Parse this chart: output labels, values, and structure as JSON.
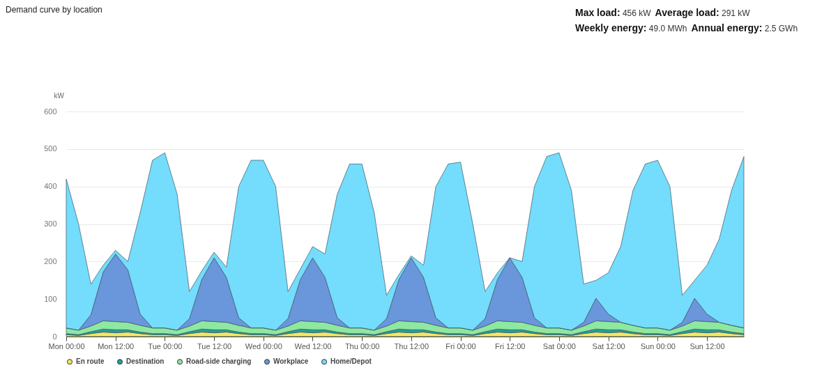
{
  "chart_data": {
    "type": "area",
    "stacked": true,
    "title": "Demand curve by location",
    "ylabel": "kW",
    "annotations": [
      "Max load: 456 kW",
      "Average load: 291 kW",
      "Weekly energy: 49.0 MWh",
      "Annual energy: 2.5 GWh"
    ],
    "categories": [
      "Mon 00:00",
      null,
      null,
      null,
      "Mon 12:00",
      null,
      null,
      null,
      "Tue 00:00",
      null,
      null,
      null,
      "Tue 12:00",
      null,
      null,
      null,
      "Wed 00:00",
      null,
      null,
      null,
      "Wed 12:00",
      null,
      null,
      null,
      "Thu 00:00",
      null,
      null,
      null,
      "Thu 12:00",
      null,
      null,
      null,
      "Fri 00:00",
      null,
      null,
      null,
      "Fri 12:00",
      null,
      null,
      null,
      "Sat 00:00",
      null,
      null,
      null,
      "Sat 12:00",
      null,
      null,
      null,
      "Sun 00:00",
      null,
      null,
      null,
      "Sun 12:00",
      null,
      null,
      null
    ],
    "series": [
      {
        "name": "En route",
        "color": "#f5e663",
        "values": [
          5,
          3,
          8,
          12,
          10,
          12,
          8,
          5,
          5,
          3,
          8,
          12,
          10,
          12,
          8,
          5,
          5,
          3,
          8,
          12,
          10,
          12,
          8,
          5,
          5,
          3,
          8,
          12,
          10,
          12,
          8,
          5,
          5,
          3,
          8,
          12,
          10,
          12,
          8,
          5,
          5,
          3,
          8,
          12,
          10,
          12,
          8,
          5,
          5,
          3,
          8,
          12,
          10,
          12,
          8,
          5
        ]
      },
      {
        "name": "Destination",
        "color": "#1fa39a",
        "values": [
          3,
          2,
          5,
          8,
          8,
          6,
          4,
          3,
          3,
          2,
          5,
          8,
          8,
          6,
          4,
          3,
          3,
          2,
          5,
          8,
          8,
          6,
          4,
          3,
          3,
          2,
          5,
          8,
          8,
          6,
          4,
          3,
          3,
          2,
          5,
          8,
          8,
          6,
          4,
          3,
          3,
          2,
          5,
          8,
          8,
          6,
          4,
          3,
          3,
          2,
          5,
          8,
          8,
          6,
          4,
          3
        ]
      },
      {
        "name": "Road-side charging",
        "color": "#8ee8a0",
        "values": [
          15,
          12,
          15,
          22,
          22,
          20,
          18,
          15,
          15,
          12,
          15,
          22,
          22,
          20,
          18,
          15,
          15,
          12,
          15,
          22,
          22,
          20,
          18,
          15,
          15,
          12,
          15,
          22,
          22,
          20,
          18,
          15,
          15,
          12,
          15,
          22,
          22,
          20,
          18,
          15,
          15,
          12,
          15,
          22,
          22,
          20,
          18,
          15,
          15,
          12,
          15,
          22,
          22,
          20,
          18,
          15
        ]
      },
      {
        "name": "Workplace",
        "color": "#6a96dc",
        "values": [
          0,
          0,
          30,
          130,
          180,
          140,
          30,
          0,
          0,
          0,
          20,
          110,
          170,
          120,
          20,
          0,
          0,
          0,
          20,
          110,
          170,
          120,
          20,
          0,
          0,
          0,
          20,
          110,
          170,
          120,
          20,
          0,
          0,
          0,
          20,
          110,
          170,
          120,
          20,
          0,
          0,
          0,
          10,
          60,
          20,
          0,
          0,
          0,
          0,
          0,
          10,
          60,
          20,
          0,
          0,
          0
        ]
      },
      {
        "name": "Home/Depot",
        "color": "#74dcfc",
        "values": [
          397,
          283,
          82,
          18,
          10,
          22,
          270,
          447,
          467,
          363,
          72,
          23,
          15,
          27,
          350,
          447,
          447,
          383,
          72,
          28,
          30,
          62,
          330,
          437,
          437,
          313,
          62,
          13,
          5,
          32,
          350,
          437,
          442,
          283,
          72,
          18,
          0,
          42,
          350,
          457,
          467,
          373,
          102,
          48,
          110,
          202,
          360,
          437,
          447,
          383,
          72,
          48,
          130,
          222,
          360,
          457
        ]
      }
    ],
    "ylim": [
      0,
      600
    ],
    "yticks": [
      0,
      100,
      200,
      300,
      400,
      500,
      600
    ],
    "grid": "y",
    "legend": "bottom"
  }
}
